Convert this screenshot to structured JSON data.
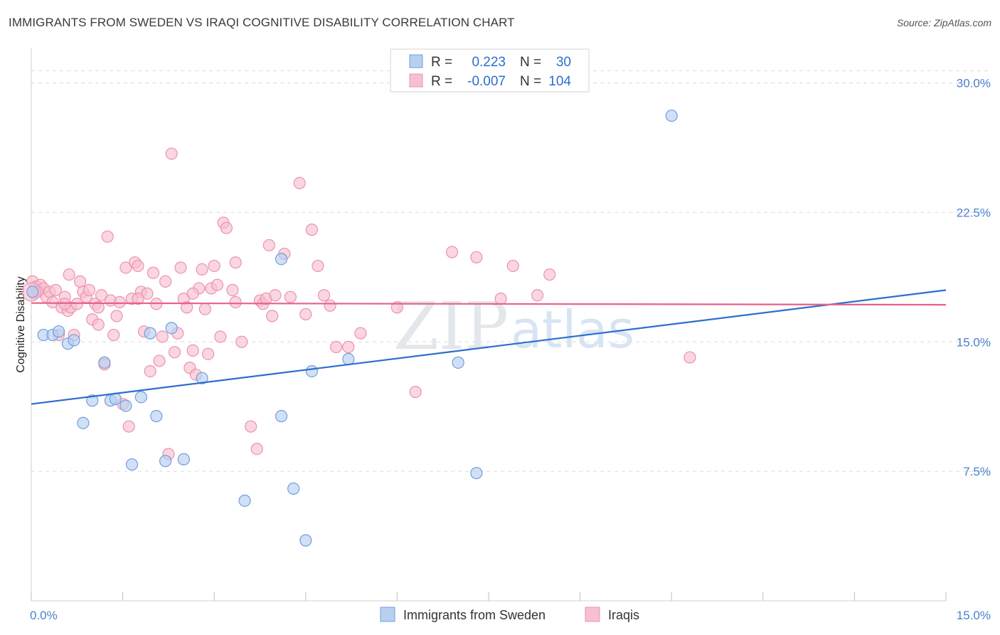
{
  "header": {
    "title": "IMMIGRANTS FROM SWEDEN VS IRAQI COGNITIVE DISABILITY CORRELATION CHART",
    "source": "Source: ZipAtlas.com"
  },
  "watermark": {
    "part1": "ZIP",
    "part2": "atlas"
  },
  "legend_box": {
    "rows": [
      {
        "r_label": "R =",
        "r_value": "0.223",
        "n_label": "N =",
        "n_value": "30"
      },
      {
        "r_label": "R =",
        "r_value": "-0.007",
        "n_label": "N =",
        "n_value": "104"
      }
    ]
  },
  "colors": {
    "blue_fill": "#b8d0f0",
    "blue_stroke": "#6f9ee0",
    "blue_line": "#2b6fd0",
    "pink_fill": "#f7c0d0",
    "pink_stroke": "#ec92ae",
    "pink_line": "#e8608c",
    "grid": "#dcdcdc",
    "axis_text": "#4a7fd0"
  },
  "chart_data": {
    "type": "scatter",
    "title": "IMMIGRANTS FROM SWEDEN VS IRAQI COGNITIVE DISABILITY CORRELATION CHART",
    "xlabel": "",
    "ylabel": "Cognitive Disability",
    "xlim": [
      0,
      15
    ],
    "ylim": [
      0,
      32
    ],
    "x_tick_labels": [
      "0.0%",
      "15.0%"
    ],
    "y_ticks": [
      7.5,
      15.0,
      22.5,
      30.0
    ],
    "y_tick_labels": [
      "7.5%",
      "15.0%",
      "22.5%",
      "30.0%"
    ],
    "legend": [
      "Immigrants from Sweden",
      "Iraqis"
    ],
    "series": [
      {
        "name": "Immigrants from Sweden",
        "r": 0.223,
        "n": 30,
        "trend": {
          "x": [
            0,
            15
          ],
          "y": [
            11.4,
            18.0
          ]
        },
        "points": [
          [
            0.02,
            17.9
          ],
          [
            0.2,
            15.4
          ],
          [
            0.35,
            15.4
          ],
          [
            0.45,
            15.6
          ],
          [
            0.6,
            14.9
          ],
          [
            0.7,
            15.1
          ],
          [
            0.85,
            10.3
          ],
          [
            1.0,
            11.6
          ],
          [
            1.2,
            13.8
          ],
          [
            1.3,
            11.6
          ],
          [
            1.38,
            11.7
          ],
          [
            1.55,
            11.3
          ],
          [
            1.65,
            7.9
          ],
          [
            1.8,
            11.8
          ],
          [
            1.95,
            15.5
          ],
          [
            2.05,
            10.7
          ],
          [
            2.2,
            8.1
          ],
          [
            2.3,
            15.8
          ],
          [
            2.5,
            8.2
          ],
          [
            2.8,
            12.9
          ],
          [
            3.5,
            5.8
          ],
          [
            4.1,
            10.7
          ],
          [
            4.1,
            19.8
          ],
          [
            4.3,
            6.5
          ],
          [
            4.5,
            3.5
          ],
          [
            4.6,
            13.3
          ],
          [
            5.2,
            14.0
          ],
          [
            7.0,
            13.8
          ],
          [
            7.3,
            7.4
          ],
          [
            10.5,
            28.1
          ]
        ]
      },
      {
        "name": "Iraqis",
        "r": -0.007,
        "n": 104,
        "trend": {
          "x": [
            0,
            15
          ],
          "y": [
            17.25,
            17.15
          ]
        },
        "points": [
          [
            0.02,
            18.5
          ],
          [
            0.05,
            17.8
          ],
          [
            0.08,
            18.2
          ],
          [
            0.12,
            18.0
          ],
          [
            0.15,
            18.3
          ],
          [
            0.2,
            18.1
          ],
          [
            0.25,
            17.6
          ],
          [
            0.3,
            17.9
          ],
          [
            0.35,
            17.3
          ],
          [
            0.4,
            18.0
          ],
          [
            0.45,
            15.4
          ],
          [
            0.5,
            17.0
          ],
          [
            0.55,
            17.6
          ],
          [
            0.6,
            16.8
          ],
          [
            0.62,
            18.9
          ],
          [
            0.65,
            17.0
          ],
          [
            0.7,
            15.4
          ],
          [
            0.75,
            17.2
          ],
          [
            0.8,
            18.5
          ],
          [
            0.85,
            17.9
          ],
          [
            0.9,
            17.6
          ],
          [
            0.95,
            18.0
          ],
          [
            1.0,
            16.3
          ],
          [
            1.05,
            17.2
          ],
          [
            1.1,
            16.0
          ],
          [
            1.15,
            17.7
          ],
          [
            1.2,
            13.7
          ],
          [
            1.25,
            21.1
          ],
          [
            1.3,
            17.4
          ],
          [
            1.35,
            15.4
          ],
          [
            1.4,
            16.5
          ],
          [
            1.45,
            17.3
          ],
          [
            1.5,
            11.4
          ],
          [
            1.55,
            19.3
          ],
          [
            1.6,
            10.1
          ],
          [
            1.65,
            17.5
          ],
          [
            1.7,
            19.6
          ],
          [
            1.75,
            19.4
          ],
          [
            1.8,
            17.9
          ],
          [
            1.85,
            15.6
          ],
          [
            1.9,
            17.8
          ],
          [
            1.95,
            13.3
          ],
          [
            2.0,
            19.0
          ],
          [
            2.05,
            17.2
          ],
          [
            2.1,
            13.9
          ],
          [
            2.15,
            15.3
          ],
          [
            2.2,
            18.5
          ],
          [
            2.25,
            8.5
          ],
          [
            2.3,
            25.9
          ],
          [
            2.35,
            14.4
          ],
          [
            2.4,
            15.5
          ],
          [
            2.45,
            19.3
          ],
          [
            2.5,
            17.5
          ],
          [
            2.55,
            17.0
          ],
          [
            2.6,
            13.5
          ],
          [
            2.65,
            14.5
          ],
          [
            2.7,
            13.1
          ],
          [
            2.75,
            18.1
          ],
          [
            2.8,
            19.2
          ],
          [
            2.85,
            16.9
          ],
          [
            2.9,
            14.3
          ],
          [
            2.95,
            18.1
          ],
          [
            3.0,
            19.4
          ],
          [
            3.05,
            18.3
          ],
          [
            3.1,
            15.3
          ],
          [
            3.15,
            21.9
          ],
          [
            3.2,
            21.6
          ],
          [
            3.3,
            18.0
          ],
          [
            3.35,
            19.6
          ],
          [
            3.45,
            15.0
          ],
          [
            3.6,
            10.1
          ],
          [
            3.7,
            8.8
          ],
          [
            3.75,
            17.4
          ],
          [
            3.8,
            17.2
          ],
          [
            3.85,
            17.5
          ],
          [
            3.9,
            20.6
          ],
          [
            3.95,
            16.5
          ],
          [
            4.0,
            17.7
          ],
          [
            4.15,
            20.1
          ],
          [
            4.4,
            24.2
          ],
          [
            4.5,
            16.6
          ],
          [
            4.6,
            21.5
          ],
          [
            4.7,
            19.4
          ],
          [
            4.8,
            17.7
          ],
          [
            4.9,
            17.1
          ],
          [
            5.0,
            14.7
          ],
          [
            5.2,
            14.7
          ],
          [
            5.4,
            15.5
          ],
          [
            6.0,
            17.0
          ],
          [
            6.3,
            12.1
          ],
          [
            6.9,
            20.2
          ],
          [
            7.3,
            19.9
          ],
          [
            7.7,
            17.5
          ],
          [
            7.9,
            19.4
          ],
          [
            8.3,
            17.7
          ],
          [
            8.5,
            18.9
          ],
          [
            10.8,
            14.1
          ],
          [
            0.1,
            17.9
          ],
          [
            0.55,
            17.2
          ],
          [
            1.1,
            17.0
          ],
          [
            1.75,
            17.5
          ],
          [
            2.65,
            17.8
          ],
          [
            3.35,
            17.3
          ],
          [
            4.25,
            17.6
          ]
        ]
      }
    ]
  },
  "bottom_legend": {
    "items": [
      {
        "label": "Immigrants from Sweden"
      },
      {
        "label": "Iraqis"
      }
    ]
  }
}
